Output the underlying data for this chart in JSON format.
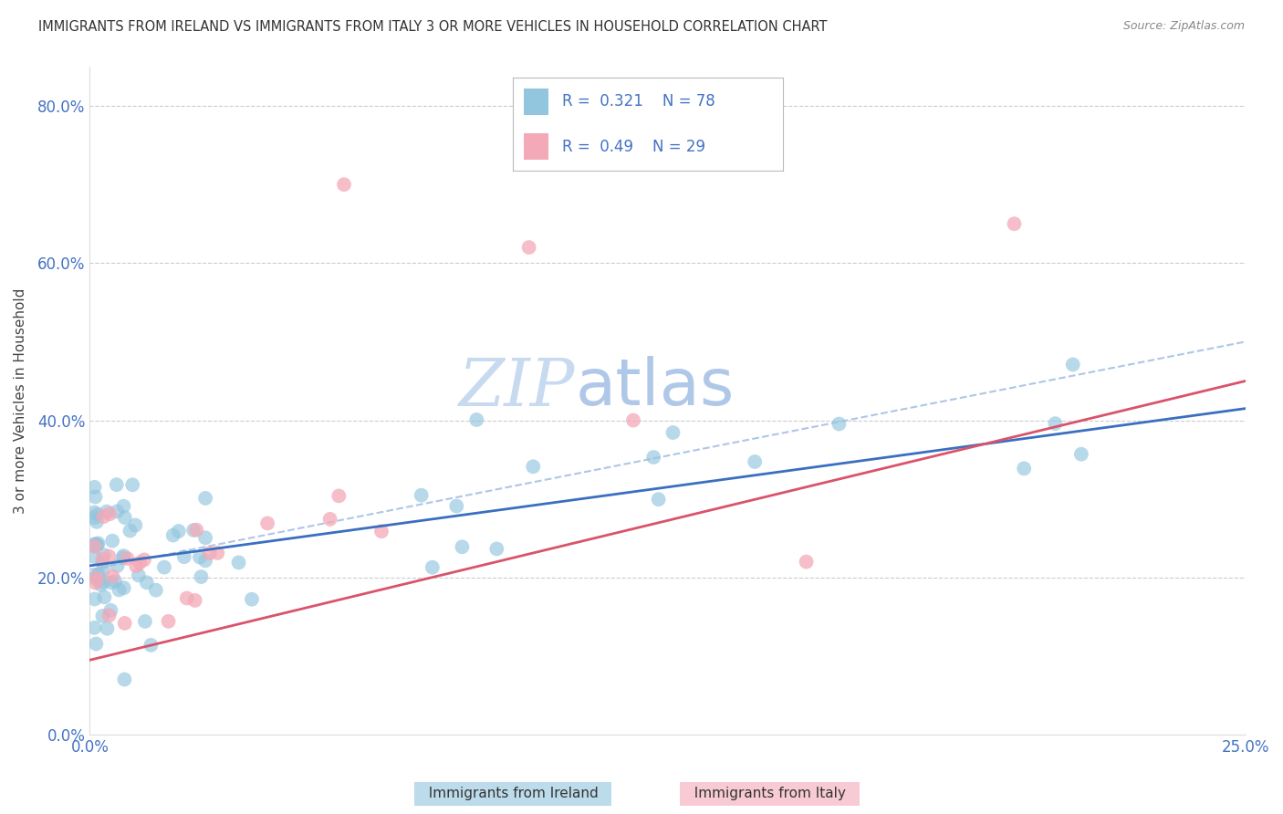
{
  "title": "IMMIGRANTS FROM IRELAND VS IMMIGRANTS FROM ITALY 3 OR MORE VEHICLES IN HOUSEHOLD CORRELATION CHART",
  "source": "Source: ZipAtlas.com",
  "ylabel": "3 or more Vehicles in Household",
  "ireland_R": 0.321,
  "ireland_N": 78,
  "italy_R": 0.49,
  "italy_N": 29,
  "xlim": [
    0.0,
    0.25
  ],
  "ylim": [
    0.0,
    0.85
  ],
  "ytick_vals": [
    0.0,
    0.2,
    0.4,
    0.6,
    0.8
  ],
  "ytick_labels": [
    "0.0%",
    "20.0%",
    "40.0%",
    "60.0%",
    "80.0%"
  ],
  "xtick_vals": [
    0.0,
    0.05,
    0.1,
    0.15,
    0.2,
    0.25
  ],
  "xtick_labels": [
    "0.0%",
    "",
    "",
    "",
    "",
    "25.0%"
  ],
  "ireland_color": "#92c5de",
  "italy_color": "#f4a9b8",
  "ireland_line_color": "#3a6fbf",
  "italy_line_color": "#d9536b",
  "trendline_color": "#aec6e8",
  "background_color": "#ffffff",
  "watermark_text": "ZIP",
  "watermark_text2": "atlas",
  "watermark_color1": "#c8daf0",
  "watermark_color2": "#b0c8e8",
  "legend_label1": "Immigrants from Ireland",
  "legend_label2": "Immigrants from Italy",
  "ireland_trendline": [
    0.215,
    0.415
  ],
  "italy_trendline": [
    0.095,
    0.45
  ],
  "gray_trendline": [
    0.21,
    0.5
  ]
}
